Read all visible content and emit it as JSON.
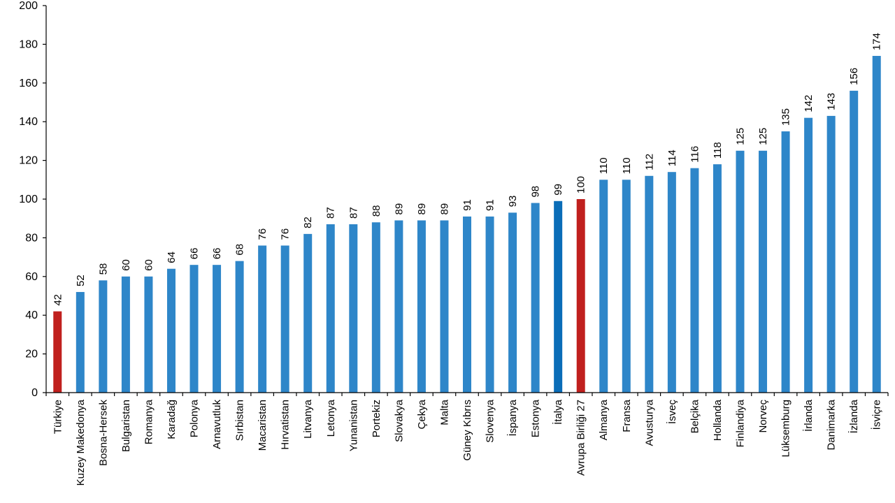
{
  "chart_data": {
    "type": "bar",
    "title": "",
    "xlabel": "",
    "ylabel": "",
    "ylim": [
      0,
      200
    ],
    "yticks": [
      0,
      20,
      40,
      60,
      80,
      100,
      120,
      140,
      160,
      180,
      200
    ],
    "grid": false,
    "legend": "none",
    "colors": {
      "default": "#2E86C9",
      "highlight": "#C0201E",
      "italy": "#0A6DB8"
    },
    "categories": [
      "Türkiye",
      "Kuzey Makedonya",
      "Bosna-Hersek",
      "Bulgaristan",
      "Romanya",
      "Karadağ",
      "Polonya",
      "Arnavutluk",
      "Sırbistan",
      "Macaristan",
      "Hırvatistan",
      "Litvanya",
      "Letonya",
      "Yunanistan",
      "Portekiz",
      "Slovakya",
      "Çekya",
      "Malta",
      "Güney Kıbrıs",
      "Slovenya",
      "İspanya",
      "Estonya",
      "İtalya",
      "Avrupa Birliği 27",
      "Almanya",
      "Fransa",
      "Avusturya",
      "İsveç",
      "Belçika",
      "Hollanda",
      "Finlandiya",
      "Norveç",
      "Lüksemburg",
      "İrlanda",
      "Danimarka",
      "İzlanda",
      "İsviçre"
    ],
    "values": [
      42,
      52,
      58,
      60,
      60,
      64,
      66,
      66,
      68,
      76,
      76,
      82,
      87,
      87,
      88,
      89,
      89,
      89,
      91,
      91,
      93,
      98,
      99,
      100,
      110,
      110,
      112,
      114,
      116,
      118,
      125,
      125,
      135,
      142,
      143,
      156,
      174
    ],
    "highlight": [
      "Türkiye",
      "Avrupa Birliği 27"
    ],
    "emphasis": [
      "İtalya"
    ]
  }
}
